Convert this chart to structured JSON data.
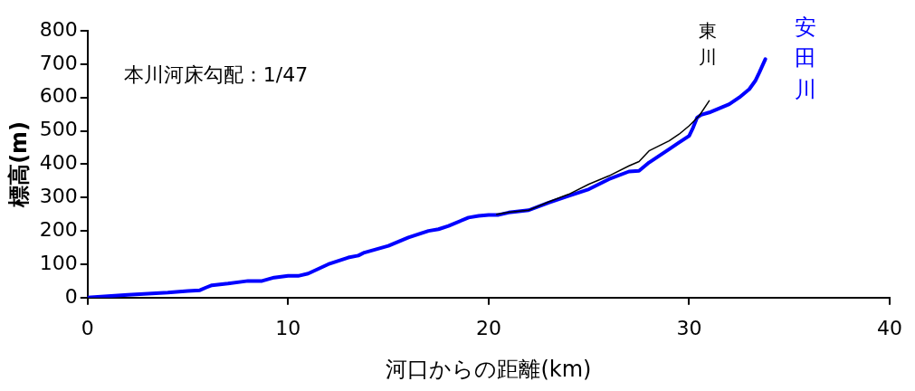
{
  "chart_data": {
    "type": "line",
    "xlabel": "河口からの距離(km)",
    "ylabel": "標高(m)",
    "annotations": [
      "本川河床勾配：1/47"
    ],
    "xlim": [
      0,
      40
    ],
    "xticks": [
      0,
      10,
      20,
      30,
      40
    ],
    "ylim": [
      0,
      800
    ],
    "yticks": [
      0,
      100,
      200,
      300,
      400,
      500,
      600,
      700,
      800
    ],
    "grid": false,
    "legend": false,
    "marker": "none",
    "line_style": "solid",
    "series": [
      {
        "name": "安田川",
        "color": "#0000ff",
        "x": [
          0,
          2,
          4,
          5,
          5.6,
          5.9,
          6.2,
          7,
          8,
          8.7,
          9.3,
          10,
          10.5,
          11,
          12,
          13,
          13.5,
          13.8,
          15,
          16,
          17,
          17.5,
          18,
          19,
          19.5,
          20,
          20.5,
          21,
          22,
          23,
          24,
          25,
          26,
          27,
          27.5,
          28,
          29,
          29.5,
          30,
          30.2,
          30.4,
          30.6,
          31,
          32,
          32.5,
          33,
          33.3,
          33.5,
          33.8
        ],
        "values": [
          0,
          8,
          15,
          20,
          22,
          30,
          37,
          42,
          50,
          50,
          60,
          65,
          65,
          72,
          100,
          120,
          126,
          135,
          155,
          180,
          200,
          205,
          215,
          240,
          245,
          248,
          248,
          255,
          262,
          285,
          305,
          325,
          355,
          378,
          380,
          405,
          445,
          465,
          485,
          510,
          540,
          548,
          555,
          580,
          600,
          625,
          650,
          675,
          715
        ]
      },
      {
        "name": "東川",
        "color": "#000000",
        "x": [
          20.4,
          21,
          22,
          23,
          24,
          25,
          26,
          27,
          27.5,
          28,
          28.5,
          29,
          29.5,
          30,
          30.5,
          31
        ],
        "values": [
          250,
          256,
          262,
          287,
          310,
          340,
          365,
          395,
          408,
          440,
          455,
          470,
          490,
          515,
          545,
          590
        ]
      }
    ]
  }
}
